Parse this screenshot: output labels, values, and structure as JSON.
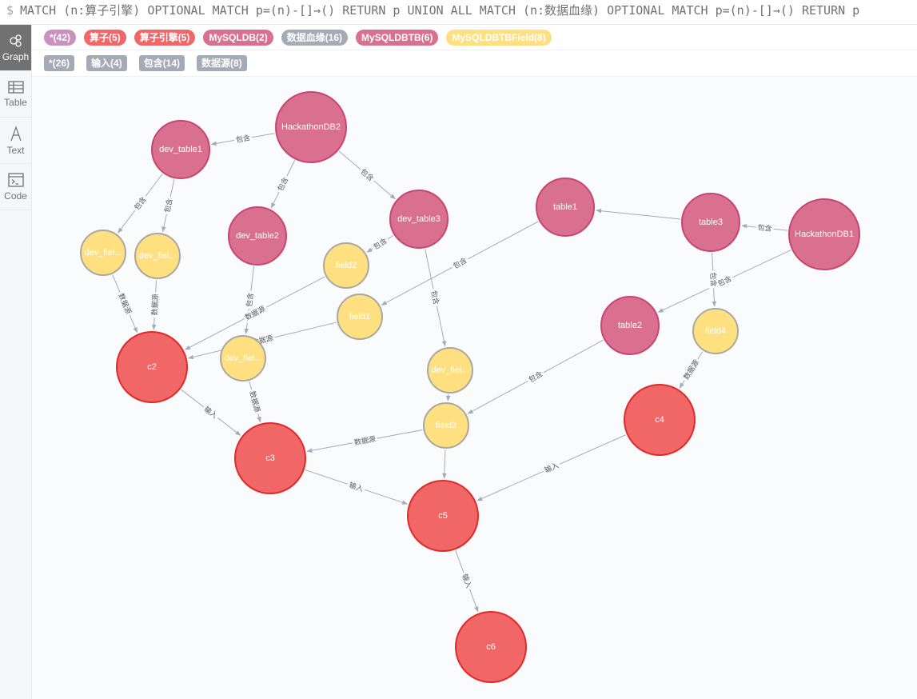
{
  "query": {
    "prompt": "$",
    "text": "MATCH (n:算子引擎) OPTIONAL MATCH p=(n)-[]→() RETURN p UNION ALL MATCH (n:数据血缘) OPTIONAL MATCH p=(n)-[]→() RETURN p"
  },
  "sidebar": [
    {
      "label": "Graph",
      "icon": "graph-icon",
      "active": true
    },
    {
      "label": "Table",
      "icon": "table-icon"
    },
    {
      "label": "Text",
      "icon": "text-icon"
    },
    {
      "label": "Code",
      "icon": "code-icon"
    }
  ],
  "legend": {
    "labels": [
      {
        "text": "*(42)",
        "color": "#c990c0"
      },
      {
        "text": "算子(5)",
        "color": "#f16667"
      },
      {
        "text": "算子引擎(5)",
        "color": "#f16667"
      },
      {
        "text": "MySQLDB(2)",
        "color": "#d9708f"
      },
      {
        "text": "数据血缘(16)",
        "color": "#a5abb6"
      },
      {
        "text": "MySQLDBTB(6)",
        "color": "#d9708f"
      },
      {
        "text": "MySQLDBTBField(8)",
        "color": "#ffe081"
      }
    ],
    "relationships": [
      "*(26)",
      "输入(4)",
      "包含(14)",
      "数据源(8)"
    ]
  },
  "colors": {
    "db": {
      "fill": "#d9708f",
      "stroke": "#c8456f"
    },
    "table": {
      "fill": "#d9708f",
      "stroke": "#c8456f"
    },
    "field": {
      "fill": "#ffe081",
      "stroke": "#a8a7a2"
    },
    "op": {
      "fill": "#f16667",
      "stroke": "#e02a2b"
    }
  },
  "graph": {
    "nodes": [
      {
        "id": "HackathonDB2",
        "label": "HackathonDB2",
        "type": "db"
      },
      {
        "id": "dev_table1",
        "label": "dev_table1",
        "type": "table"
      },
      {
        "id": "dev_table2",
        "label": "dev_table2",
        "type": "table"
      },
      {
        "id": "dev_table3",
        "label": "dev_table3",
        "type": "table"
      },
      {
        "id": "dev_field_a",
        "label": "dev_fiel...",
        "type": "field"
      },
      {
        "id": "dev_field_b",
        "label": "dev_fiel...",
        "type": "field"
      },
      {
        "id": "dev_field_c",
        "label": "dev_fiel...",
        "type": "field"
      },
      {
        "id": "dev_field_d",
        "label": "dev_fiel...",
        "type": "field"
      },
      {
        "id": "field2",
        "label": "field2",
        "type": "field"
      },
      {
        "id": "field1",
        "label": "field1",
        "type": "field"
      },
      {
        "id": "field3",
        "label": "field3",
        "type": "field"
      },
      {
        "id": "field4",
        "label": "field4",
        "type": "field"
      },
      {
        "id": "table1",
        "label": "table1",
        "type": "table"
      },
      {
        "id": "table3",
        "label": "table3",
        "type": "table"
      },
      {
        "id": "table2",
        "label": "table2",
        "type": "table"
      },
      {
        "id": "HackathonDB1",
        "label": "HackathonDB1",
        "type": "db"
      },
      {
        "id": "c2",
        "label": "c2",
        "type": "op"
      },
      {
        "id": "c3",
        "label": "c3",
        "type": "op"
      },
      {
        "id": "c4",
        "label": "c4",
        "type": "op"
      },
      {
        "id": "c5",
        "label": "c5",
        "type": "op"
      },
      {
        "id": "c6",
        "label": "c6",
        "type": "op"
      }
    ],
    "edges": [
      {
        "from": "HackathonDB2",
        "to": "dev_table1",
        "label": "包含"
      },
      {
        "from": "HackathonDB2",
        "to": "dev_table2",
        "label": "包含"
      },
      {
        "from": "HackathonDB2",
        "to": "dev_table3",
        "label": "包含"
      },
      {
        "from": "dev_table1",
        "to": "dev_field_a",
        "label": "包含"
      },
      {
        "from": "dev_table1",
        "to": "dev_field_b",
        "label": "包含"
      },
      {
        "from": "dev_table2",
        "to": "dev_field_c",
        "label": "包含"
      },
      {
        "from": "dev_table3",
        "to": "field2",
        "label": "包含"
      },
      {
        "from": "dev_table3",
        "to": "dev_field_d",
        "label": "包含"
      },
      {
        "from": "table1",
        "to": "field1",
        "label": "包含"
      },
      {
        "from": "table3",
        "to": "table1",
        "label": ""
      },
      {
        "from": "HackathonDB1",
        "to": "table3",
        "label": "包含"
      },
      {
        "from": "HackathonDB1",
        "to": "table2",
        "label": "包含"
      },
      {
        "from": "table3",
        "to": "field4",
        "label": "包含"
      },
      {
        "from": "table2",
        "to": "field3",
        "label": "包含"
      },
      {
        "from": "dev_field_a",
        "to": "c2",
        "label": "数据源"
      },
      {
        "from": "dev_field_b",
        "to": "c2",
        "label": "数据源"
      },
      {
        "from": "field2",
        "to": "c2",
        "label": "数据源"
      },
      {
        "from": "field1",
        "to": "c2",
        "label": "数据源"
      },
      {
        "from": "dev_field_c",
        "to": "c3",
        "label": "数据源"
      },
      {
        "from": "field3",
        "to": "c3",
        "label": "数据源"
      },
      {
        "from": "field4",
        "to": "c4",
        "label": "数据源"
      },
      {
        "from": "dev_field_d",
        "to": "field3",
        "label": ""
      },
      {
        "from": "field3",
        "to": "c5",
        "label": ""
      },
      {
        "from": "c2",
        "to": "c3",
        "label": "输入"
      },
      {
        "from": "c3",
        "to": "c5",
        "label": "输入"
      },
      {
        "from": "c4",
        "to": "c5",
        "label": "输入"
      },
      {
        "from": "c5",
        "to": "c6",
        "label": "输入"
      }
    ]
  }
}
